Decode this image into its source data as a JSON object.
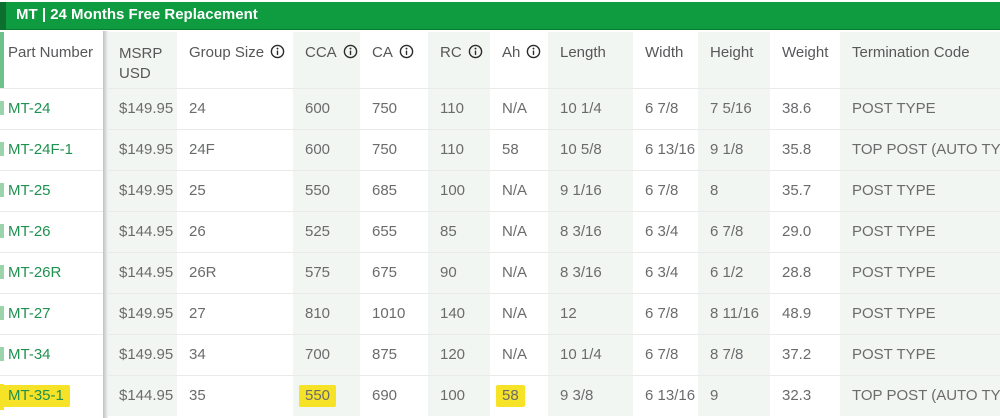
{
  "banner": {
    "title": "MT | 24 Months Free Replacement"
  },
  "table": {
    "columns": [
      {
        "key": "part",
        "label": "Part Number",
        "info": false
      },
      {
        "key": "msrp",
        "label": "MSRP USD",
        "info": false
      },
      {
        "key": "group_size",
        "label": "Group Size",
        "info": true
      },
      {
        "key": "cca",
        "label": "CCA",
        "info": true
      },
      {
        "key": "ca",
        "label": "CA",
        "info": true
      },
      {
        "key": "rc",
        "label": "RC",
        "info": true
      },
      {
        "key": "ah",
        "label": "Ah",
        "info": true
      },
      {
        "key": "length",
        "label": "Length",
        "info": false
      },
      {
        "key": "width",
        "label": "Width",
        "info": false
      },
      {
        "key": "height",
        "label": "Height",
        "info": false
      },
      {
        "key": "weight",
        "label": "Weight",
        "info": false
      },
      {
        "key": "termination",
        "label": "Termination Code",
        "info": false
      }
    ],
    "rows": [
      {
        "cells": [
          "MT-24",
          "$149.95",
          "24",
          "600",
          "750",
          "110",
          "N/A",
          "10 1/4",
          "6 7/8",
          "7 5/16",
          "38.6",
          "POST TYPE"
        ],
        "highlights": []
      },
      {
        "cells": [
          "MT-24F-1",
          "$149.95",
          "24F",
          "600",
          "750",
          "110",
          "58",
          "10 5/8",
          "6 13/16",
          "9 1/8",
          "35.8",
          "TOP POST (AUTO TYPE)"
        ],
        "highlights": []
      },
      {
        "cells": [
          "MT-25",
          "$149.95",
          "25",
          "550",
          "685",
          "100",
          "N/A",
          "9 1/16",
          "6 7/8",
          "8",
          "35.7",
          "POST TYPE"
        ],
        "highlights": []
      },
      {
        "cells": [
          "MT-26",
          "$144.95",
          "26",
          "525",
          "655",
          "85",
          "N/A",
          "8 3/16",
          "6 3/4",
          "6 7/8",
          "29.0",
          "POST TYPE"
        ],
        "highlights": []
      },
      {
        "cells": [
          "MT-26R",
          "$144.95",
          "26R",
          "575",
          "675",
          "90",
          "N/A",
          "8 3/16",
          "6 3/4",
          "6 1/2",
          "28.8",
          "POST TYPE"
        ],
        "highlights": []
      },
      {
        "cells": [
          "MT-27",
          "$149.95",
          "27",
          "810",
          "1010",
          "140",
          "N/A",
          "12",
          "6 7/8",
          "8 11/16",
          "48.9",
          "POST TYPE"
        ],
        "highlights": []
      },
      {
        "cells": [
          "MT-34",
          "$149.95",
          "34",
          "700",
          "875",
          "120",
          "N/A",
          "10 1/4",
          "6 7/8",
          "8 7/8",
          "37.2",
          "POST TYPE"
        ],
        "highlights": []
      },
      {
        "cells": [
          "MT-35-1",
          "$144.95",
          "35",
          "550",
          "690",
          "100",
          "58",
          "9 3/8",
          "6 13/16",
          "9",
          "32.3",
          "TOP POST (AUTO TYPE)"
        ],
        "highlights": [
          0,
          3,
          6
        ]
      }
    ]
  },
  "icons": {
    "info": "info-circle-icon"
  },
  "colors": {
    "banner_green": "#0f9b40",
    "banner_dark_green": "#0d6f2e",
    "link_green": "#1f9150",
    "highlight_yellow": "#f6e226",
    "column_stripe": "#f2f6f2"
  }
}
